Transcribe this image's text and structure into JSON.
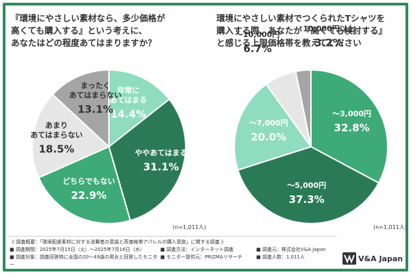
{
  "chart_data": [
    {
      "type": "pie",
      "title_lines": [
        "『環境にやさしい素材なら、多少価格が",
        "高くても購入する』という考えに、",
        "あなたはどの程度あてはまりますか？"
      ],
      "sample_note": "(n=1,011人)",
      "slices": [
        {
          "label_lines": [
            "非常に",
            "あてはまる"
          ],
          "value": 14.4,
          "value_label": "14.4%",
          "color": "#8fdcc0",
          "label_color": "#ffffff"
        },
        {
          "label_lines": [
            "ややあてはまる"
          ],
          "value": 31.1,
          "value_label": "31.1%",
          "color": "#2a7b55",
          "label_color": "#ffffff"
        },
        {
          "label_lines": [
            "どちらでもない"
          ],
          "value": 22.9,
          "value_label": "22.9%",
          "color": "#3daa77",
          "label_color": "#ffffff"
        },
        {
          "label_lines": [
            "あまり",
            "あてはまらない"
          ],
          "value": 18.5,
          "value_label": "18.5%",
          "color": "#e6e6e6",
          "label_color": "#333333"
        },
        {
          "label_lines": [
            "まったく",
            "あてはまらない"
          ],
          "value": 13.1,
          "value_label": "13.1%",
          "color": "#a5a5a5",
          "label_color": "#333333"
        }
      ]
    },
    {
      "type": "pie",
      "title_lines": [
        "環境にやさしい素材でつくられたTシャツを",
        "購入する際、あなたが『高くても検討する』",
        "と感じる上限価格帯を教えてください"
      ],
      "sample_note": "(n=1,011人)",
      "slices": [
        {
          "label_lines": [
            "～3,000円"
          ],
          "value": 32.8,
          "value_label": "32.8%",
          "color": "#3daa77",
          "label_color": "#ffffff"
        },
        {
          "label_lines": [
            "～5,000円"
          ],
          "value": 37.3,
          "value_label": "37.3%",
          "color": "#2a7b55",
          "label_color": "#ffffff"
        },
        {
          "label_lines": [
            "～7,000円"
          ],
          "value": 20.0,
          "value_label": "20.0%",
          "color": "#8fdcc0",
          "label_color": "#ffffff"
        },
        {
          "label_lines": [
            "～10,000円"
          ],
          "value": 6.7,
          "value_label": "6.7%",
          "color": "#e6e6e6",
          "label_color": "#333333"
        },
        {
          "label_lines": [
            "10,000円以上"
          ],
          "value": 3.2,
          "value_label": "3.2%",
          "color": "#a5a5a5",
          "label_color": "#333333"
        }
      ]
    }
  ],
  "footer": {
    "overview": "《 調査概要：「環境配慮素材に対する消費者の意識と高価格帯アパレルの購入意欲」に関する調査 》",
    "period": "■ 調査期間：2025年7月15日（火）～2025年7月16日（水）",
    "method": "■ 調査方法：インターネット調査",
    "source": "■ 調査元：株式会社V&A Japan",
    "target": "■ 調査対象：調査回答時に全国の20～49歳の男女と回答したモニター",
    "provider": "■ モニター提供元：PRIZMAリサーチ",
    "count": "■ 調査人数：1,011人"
  },
  "logo": {
    "text": "V&A Japan"
  },
  "colors": {
    "accent": "#2f8a5c"
  }
}
